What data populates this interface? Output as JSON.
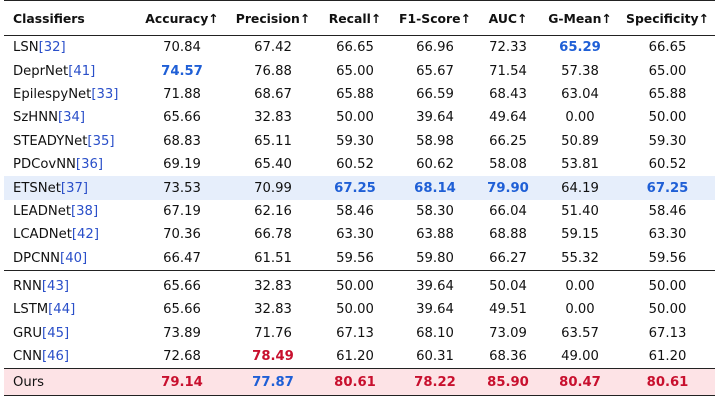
{
  "table": {
    "headers": [
      "Classifiers",
      "Accuracy↑",
      "Precision↑",
      "Recall↑",
      "F1-Score↑",
      "AUC↑",
      "G-Mean↑",
      "Specificity↑"
    ],
    "colors": {
      "best": "#c8102e",
      "second": "#1f5fd6",
      "ref": "#2a4fc9",
      "highlight_row_blue": "#e6eefb",
      "highlight_row_red": "#fde3e6"
    },
    "group1": [
      {
        "name": "LSN",
        "ref": "[32]",
        "values": [
          "70.84",
          "67.42",
          "66.65",
          "66.96",
          "72.33",
          "65.29",
          "66.65"
        ],
        "styles": [
          "",
          "",
          "",
          "",
          "",
          "blue",
          ""
        ]
      },
      {
        "name": "DeprNet",
        "ref": "[41]",
        "values": [
          "74.57",
          "76.88",
          "65.00",
          "65.67",
          "71.54",
          "57.38",
          "65.00"
        ],
        "styles": [
          "blue",
          "",
          "",
          "",
          "",
          "",
          ""
        ]
      },
      {
        "name": "EpilespyNet",
        "ref": "[33]",
        "values": [
          "71.88",
          "68.67",
          "65.88",
          "66.59",
          "68.43",
          "63.04",
          "65.88"
        ],
        "styles": [
          "",
          "",
          "",
          "",
          "",
          "",
          ""
        ]
      },
      {
        "name": "SzHNN",
        "ref": "[34]",
        "values": [
          "65.66",
          "32.83",
          "50.00",
          "39.64",
          "49.64",
          "0.00",
          "50.00"
        ],
        "styles": [
          "",
          "",
          "",
          "",
          "",
          "",
          ""
        ]
      },
      {
        "name": "STEADYNet",
        "ref": "[35]",
        "values": [
          "68.83",
          "65.11",
          "59.30",
          "58.98",
          "66.25",
          "50.89",
          "59.30"
        ],
        "styles": [
          "",
          "",
          "",
          "",
          "",
          "",
          ""
        ]
      },
      {
        "name": "PDCovNN",
        "ref": "[36]",
        "values": [
          "69.19",
          "65.40",
          "60.52",
          "60.62",
          "58.08",
          "53.81",
          "60.52"
        ],
        "styles": [
          "",
          "",
          "",
          "",
          "",
          "",
          ""
        ]
      },
      {
        "name": "ETSNet",
        "ref": "[37]",
        "values": [
          "73.53",
          "70.99",
          "67.25",
          "68.14",
          "79.90",
          "64.19",
          "67.25"
        ],
        "styles": [
          "",
          "",
          "blue",
          "blue",
          "blue",
          "",
          "blue"
        ],
        "highlight": true
      },
      {
        "name": "LEADNet",
        "ref": "[38]",
        "values": [
          "67.19",
          "62.16",
          "58.46",
          "58.30",
          "66.04",
          "51.40",
          "58.46"
        ],
        "styles": [
          "",
          "",
          "",
          "",
          "",
          "",
          ""
        ]
      },
      {
        "name": "LCADNet",
        "ref": "[42]",
        "values": [
          "70.36",
          "66.78",
          "63.30",
          "63.88",
          "68.88",
          "59.15",
          "63.30"
        ],
        "styles": [
          "",
          "",
          "",
          "",
          "",
          "",
          ""
        ]
      },
      {
        "name": "DPCNN",
        "ref": "[40]",
        "values": [
          "66.47",
          "61.51",
          "59.56",
          "59.80",
          "66.27",
          "55.32",
          "59.56"
        ],
        "styles": [
          "",
          "",
          "",
          "",
          "",
          "",
          ""
        ]
      }
    ],
    "group2": [
      {
        "name": "RNN",
        "ref": "[43]",
        "values": [
          "65.66",
          "32.83",
          "50.00",
          "39.64",
          "50.04",
          "0.00",
          "50.00"
        ],
        "styles": [
          "",
          "",
          "",
          "",
          "",
          "",
          ""
        ]
      },
      {
        "name": "LSTM",
        "ref": "[44]",
        "values": [
          "65.66",
          "32.83",
          "50.00",
          "39.64",
          "49.51",
          "0.00",
          "50.00"
        ],
        "styles": [
          "",
          "",
          "",
          "",
          "",
          "",
          ""
        ]
      },
      {
        "name": "GRU",
        "ref": "[45]",
        "values": [
          "73.89",
          "71.76",
          "67.13",
          "68.10",
          "73.09",
          "63.57",
          "67.13"
        ],
        "styles": [
          "",
          "",
          "",
          "",
          "",
          "",
          ""
        ]
      },
      {
        "name": "CNN",
        "ref": "[46]",
        "values": [
          "72.68",
          "78.49",
          "61.20",
          "60.31",
          "68.36",
          "49.00",
          "61.20"
        ],
        "styles": [
          "",
          "red",
          "",
          "",
          "",
          "",
          ""
        ]
      }
    ],
    "ours": {
      "name": "Ours",
      "ref": "",
      "values": [
        "79.14",
        "77.87",
        "80.61",
        "78.22",
        "85.90",
        "80.47",
        "80.61"
      ],
      "styles": [
        "red",
        "blue",
        "red",
        "red",
        "red",
        "red",
        "red"
      ],
      "highlight": true
    }
  }
}
